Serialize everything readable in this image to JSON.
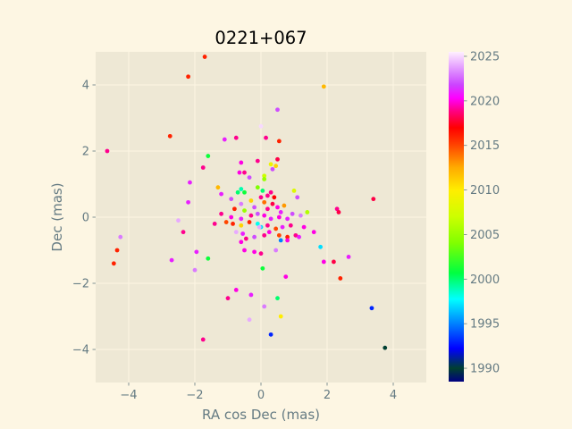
{
  "chart_data": {
    "type": "scatter",
    "title": "0221+067",
    "xlabel": "RA cos Dec (mas)",
    "ylabel": "Dec (mas)",
    "xlim": [
      -5,
      5
    ],
    "ylim": [
      -5,
      5
    ],
    "x_ticks": [
      -4,
      -2,
      0,
      2,
      4
    ],
    "y_ticks": [
      -4,
      -2,
      0,
      2,
      4
    ],
    "x_tick_labels": [
      "−4",
      "−2",
      "0",
      "2",
      "4"
    ],
    "y_tick_labels": [
      "−4",
      "−2",
      "0",
      "2",
      "4"
    ],
    "grid": true,
    "colorbar": {
      "min": 1988.5,
      "max": 2025.5,
      "ticks": [
        1990,
        1995,
        2000,
        2005,
        2010,
        2015,
        2020,
        2025
      ],
      "tick_labels": [
        "1990",
        "1995",
        "2000",
        "2005",
        "2010",
        "2015",
        "2020",
        "2025"
      ],
      "colormap_stops": [
        [
          0.0,
          "#000080"
        ],
        [
          0.04,
          "#004030"
        ],
        [
          0.1,
          "#0000ff"
        ],
        [
          0.18,
          "#0088ff"
        ],
        [
          0.25,
          "#00ffff"
        ],
        [
          0.33,
          "#00ff40"
        ],
        [
          0.42,
          "#80ff00"
        ],
        [
          0.5,
          "#ccff00"
        ],
        [
          0.58,
          "#ffee00"
        ],
        [
          0.65,
          "#ffaa00"
        ],
        [
          0.72,
          "#ff4000"
        ],
        [
          0.77,
          "#ff0000"
        ],
        [
          0.82,
          "#ff0080"
        ],
        [
          0.86,
          "#ff00ff"
        ],
        [
          0.9,
          "#cc44ff"
        ],
        [
          0.94,
          "#dd88ff"
        ],
        [
          1.0,
          "#fff0ff"
        ]
      ]
    },
    "points": [
      [
        -1.7,
        4.85,
        2016
      ],
      [
        -2.2,
        4.25,
        2016
      ],
      [
        1.9,
        3.95,
        2012
      ],
      [
        0.5,
        3.25,
        2022
      ],
      [
        -2.75,
        2.45,
        2016
      ],
      [
        -0.75,
        2.4,
        2019
      ],
      [
        -1.1,
        2.35,
        2021
      ],
      [
        0.15,
        2.4,
        2019
      ],
      [
        0.55,
        2.3,
        2016
      ],
      [
        -4.65,
        2.0,
        2019
      ],
      [
        -1.6,
        1.85,
        2001
      ],
      [
        -0.6,
        1.65,
        2020
      ],
      [
        -0.1,
        1.7,
        2019
      ],
      [
        0.5,
        1.75,
        2018
      ],
      [
        -1.75,
        1.5,
        2019
      ],
      [
        -0.65,
        1.35,
        2020
      ],
      [
        -0.5,
        1.35,
        2019
      ],
      [
        0.3,
        1.6,
        2009
      ],
      [
        0.45,
        1.55,
        2011
      ],
      [
        0.35,
        1.45,
        2022
      ],
      [
        0.1,
        1.25,
        2007
      ],
      [
        0.1,
        1.15,
        2005
      ],
      [
        -2.15,
        1.05,
        2021
      ],
      [
        -0.35,
        1.2,
        2022
      ],
      [
        -1.3,
        0.9,
        2012
      ],
      [
        -0.6,
        0.85,
        1999
      ],
      [
        -0.7,
        0.75,
        2000
      ],
      [
        -0.5,
        0.75,
        2001
      ],
      [
        -0.1,
        0.9,
        2004
      ],
      [
        0.05,
        0.8,
        2000
      ],
      [
        0.3,
        0.75,
        2019
      ],
      [
        0.4,
        0.6,
        2017
      ],
      [
        0.2,
        0.65,
        2019
      ],
      [
        0.0,
        0.6,
        2019
      ],
      [
        1.0,
        0.8,
        2008
      ],
      [
        1.1,
        0.6,
        2022
      ],
      [
        3.4,
        0.55,
        2018
      ],
      [
        -1.2,
        0.7,
        2021
      ],
      [
        -2.2,
        0.45,
        2021
      ],
      [
        -0.9,
        0.55,
        2022
      ],
      [
        -0.6,
        0.4,
        2023
      ],
      [
        -0.3,
        0.5,
        2011
      ],
      [
        0.1,
        0.45,
        2014
      ],
      [
        0.35,
        0.4,
        2018
      ],
      [
        0.5,
        0.3,
        2020
      ],
      [
        0.7,
        0.35,
        2013
      ],
      [
        -0.8,
        0.25,
        2016
      ],
      [
        -0.5,
        0.2,
        2005
      ],
      [
        -0.2,
        0.3,
        2022
      ],
      [
        0.2,
        0.25,
        2019
      ],
      [
        0.6,
        0.15,
        2021
      ],
      [
        0.95,
        0.1,
        2022
      ],
      [
        1.4,
        0.15,
        2006
      ],
      [
        2.3,
        0.25,
        2019
      ],
      [
        2.35,
        0.15,
        2018
      ],
      [
        -1.2,
        0.1,
        2019
      ],
      [
        -0.9,
        0.0,
        2020
      ],
      [
        -0.6,
        -0.05,
        2021
      ],
      [
        -0.3,
        0.05,
        2019
      ],
      [
        -0.1,
        0.1,
        2022
      ],
      [
        0.1,
        0.05,
        2020
      ],
      [
        0.3,
        -0.05,
        2021
      ],
      [
        0.55,
        0.0,
        2020
      ],
      [
        0.8,
        -0.05,
        2021
      ],
      [
        1.2,
        0.05,
        2023
      ],
      [
        -1.4,
        -0.2,
        2019
      ],
      [
        -1.05,
        -0.15,
        2015
      ],
      [
        -0.85,
        -0.2,
        2016
      ],
      [
        -0.6,
        -0.25,
        2011
      ],
      [
        -0.35,
        -0.15,
        2016
      ],
      [
        -0.1,
        -0.2,
        1998
      ],
      [
        0.0,
        -0.3,
        1997
      ],
      [
        0.2,
        -0.25,
        2019
      ],
      [
        0.45,
        -0.35,
        2015
      ],
      [
        0.65,
        -0.3,
        2021
      ],
      [
        0.9,
        -0.25,
        2019
      ],
      [
        1.3,
        -0.3,
        2020
      ],
      [
        1.6,
        -0.45,
        2020
      ],
      [
        -2.5,
        -0.1,
        2024
      ],
      [
        -2.35,
        -0.45,
        2019
      ],
      [
        -0.75,
        -0.45,
        2024
      ],
      [
        -0.55,
        -0.5,
        2021
      ],
      [
        -0.45,
        -0.65,
        2019
      ],
      [
        -0.6,
        -0.75,
        2020
      ],
      [
        -0.2,
        -0.6,
        2022
      ],
      [
        0.1,
        -0.55,
        2019
      ],
      [
        0.25,
        -0.45,
        2020
      ],
      [
        0.55,
        -0.55,
        2015
      ],
      [
        0.6,
        -0.7,
        1995
      ],
      [
        0.8,
        -0.6,
        2016
      ],
      [
        0.8,
        -0.7,
        2020
      ],
      [
        1.05,
        -0.55,
        2019
      ],
      [
        1.15,
        -0.6,
        2021
      ],
      [
        1.8,
        -0.9,
        1997
      ],
      [
        -4.25,
        -0.6,
        2023
      ],
      [
        -4.35,
        -1.0,
        2016
      ],
      [
        -4.45,
        -1.4,
        2016
      ],
      [
        -2.7,
        -1.3,
        2021
      ],
      [
        -1.95,
        -1.05,
        2021
      ],
      [
        -1.6,
        -1.25,
        2001
      ],
      [
        -0.5,
        -1.0,
        2020
      ],
      [
        -0.2,
        -1.05,
        2020
      ],
      [
        0.0,
        -1.1,
        2019
      ],
      [
        0.45,
        -1.0,
        2023
      ],
      [
        1.9,
        -1.35,
        2020
      ],
      [
        2.2,
        -1.35,
        2018
      ],
      [
        2.65,
        -1.2,
        2021
      ],
      [
        -2.0,
        -1.6,
        2023
      ],
      [
        0.05,
        -1.55,
        2001
      ],
      [
        0.75,
        -1.8,
        2020
      ],
      [
        2.4,
        -1.85,
        2016
      ],
      [
        -0.75,
        -2.2,
        2020
      ],
      [
        -1.0,
        -2.45,
        2019
      ],
      [
        -0.3,
        -2.35,
        2021
      ],
      [
        0.5,
        -2.45,
        2000
      ],
      [
        0.1,
        -2.7,
        2023
      ],
      [
        3.35,
        -2.75,
        1993
      ],
      [
        0.6,
        -3.0,
        2010
      ],
      [
        -0.35,
        -3.1,
        2024
      ],
      [
        0.3,
        -3.55,
        1993
      ],
      [
        -1.75,
        -3.7,
        2019
      ],
      [
        3.75,
        -3.95,
        1990
      ],
      [
        0.0,
        2.75,
        2025
      ],
      [
        -0.05,
        -0.3,
        2024
      ]
    ]
  }
}
